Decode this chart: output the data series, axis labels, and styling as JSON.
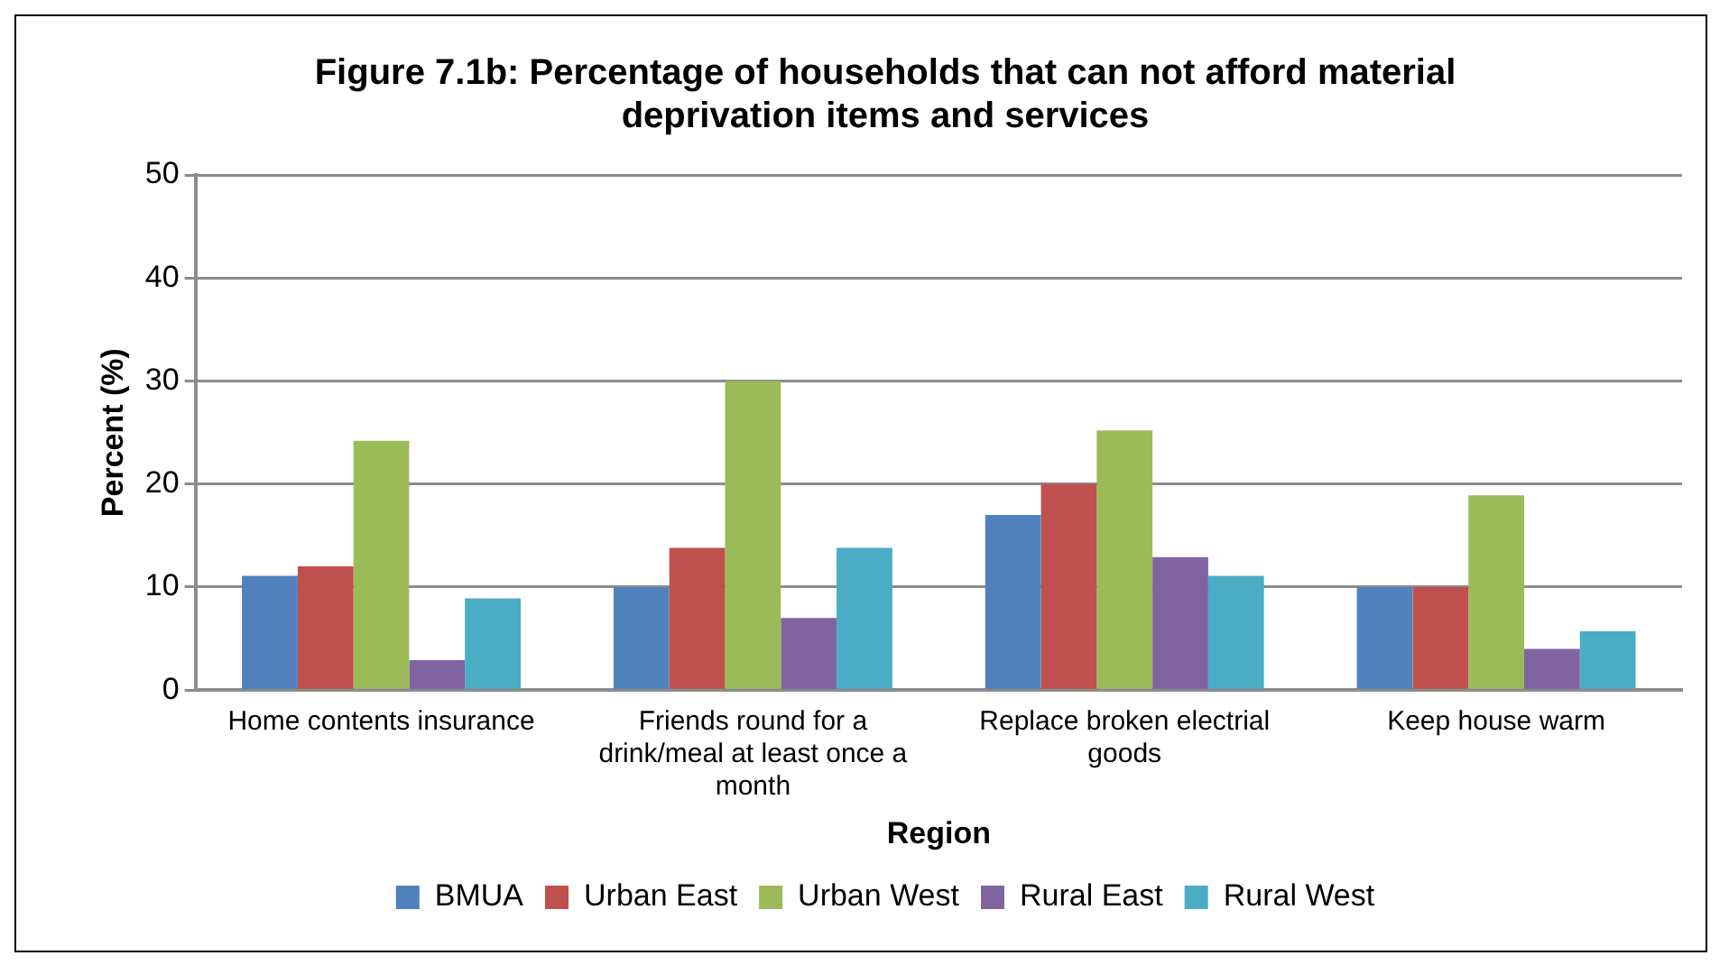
{
  "chart_data": {
    "type": "bar",
    "title": "Figure 7.1b: Percentage of households that can not afford material deprivation items and services",
    "xlabel": "Region",
    "ylabel": "Percent (%)",
    "categories": [
      "Home contents insurance",
      "Friends round for a drink/meal at least once a month",
      "Replace broken electrial goods",
      "Keep house warm"
    ],
    "series": [
      {
        "name": "BMUA",
        "color": "#4f81bd",
        "values": [
          11.1,
          10,
          17,
          10
        ]
      },
      {
        "name": "Urban East",
        "color": "#c0504d",
        "values": [
          12,
          13.8,
          20,
          10
        ]
      },
      {
        "name": "Urban West",
        "color": "#9bbb59",
        "values": [
          24.2,
          30,
          25.2,
          18.9
        ]
      },
      {
        "name": "Rural East",
        "color": "#8064a2",
        "values": [
          2.9,
          7,
          12.9,
          4
        ]
      },
      {
        "name": "Rural West",
        "color": "#4bacc6",
        "values": [
          8.9,
          13.8,
          11.1,
          5.7
        ]
      }
    ],
    "ylim": [
      0,
      50
    ],
    "yticks": [
      0,
      10,
      20,
      30,
      40,
      50
    ],
    "grid": "y",
    "legend": "bottom"
  }
}
